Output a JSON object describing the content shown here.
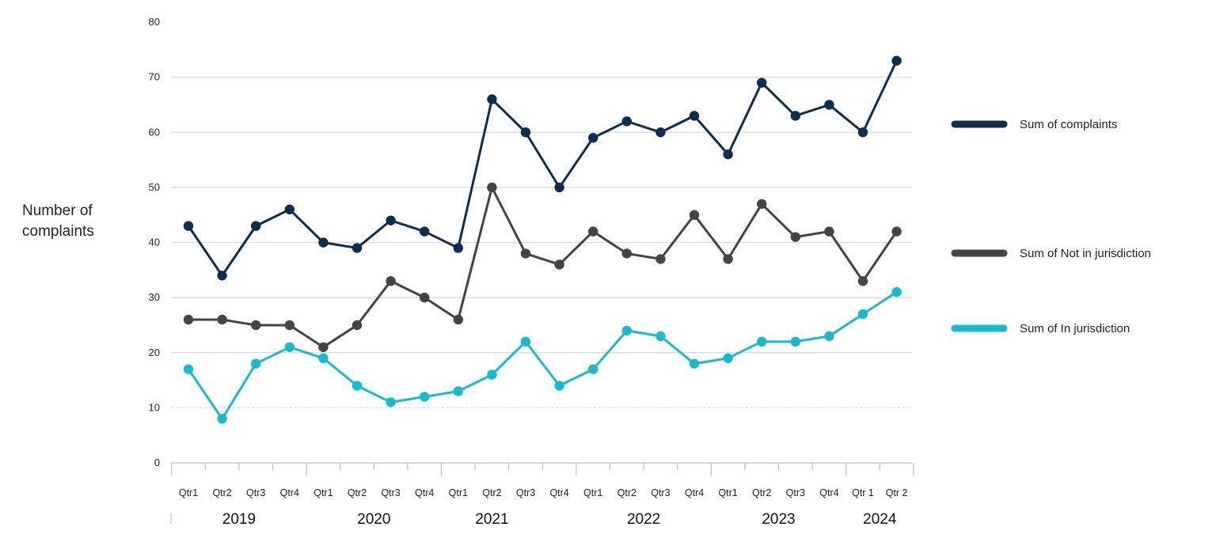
{
  "chart_data": {
    "type": "line",
    "ylabel": [
      "Number of",
      "complaints"
    ],
    "xlabel": "",
    "ylim": [
      0,
      80
    ],
    "yticks": [
      0,
      10,
      20,
      30,
      40,
      50,
      60,
      70,
      80
    ],
    "grid": true,
    "legend_position": "right",
    "x": [
      "Qtr1",
      "Qtr2",
      "Qtr3",
      "Qtr4",
      "Qtr1",
      "Qtr2",
      "Qtr3",
      "Qtr4",
      "Qtr1",
      "Qtr2",
      "Qtr3",
      "Qtr4",
      "Qtr1",
      "Qtr2",
      "Qtr3",
      "Qtr4",
      "Qtr1",
      "Qtr2",
      "Qtr3",
      "Qtr4",
      "Qtr 1",
      "Qtr 2"
    ],
    "years": [
      "2019",
      "2020",
      "2021",
      "2022",
      "2023",
      "2024"
    ],
    "series": [
      {
        "name": "Sum of complaints",
        "color": "#0f2d52",
        "values": [
          43,
          34,
          43,
          46,
          40,
          39,
          44,
          42,
          39,
          66,
          60,
          50,
          59,
          62,
          60,
          63,
          56,
          69,
          63,
          65,
          60,
          73
        ]
      },
      {
        "name": "Sum of Not in jurisdiction",
        "color": "#444444",
        "values": [
          26,
          26,
          25,
          25,
          21,
          25,
          33,
          30,
          26,
          50,
          38,
          36,
          42,
          38,
          37,
          45,
          37,
          47,
          41,
          42,
          33,
          42
        ]
      },
      {
        "name": "Sum of In jurisdiction",
        "color": "#1ab9cf",
        "values": [
          17,
          8,
          18,
          21,
          19,
          14,
          11,
          12,
          13,
          16,
          22,
          14,
          17,
          24,
          23,
          18,
          19,
          22,
          22,
          23,
          27,
          31
        ]
      }
    ]
  }
}
